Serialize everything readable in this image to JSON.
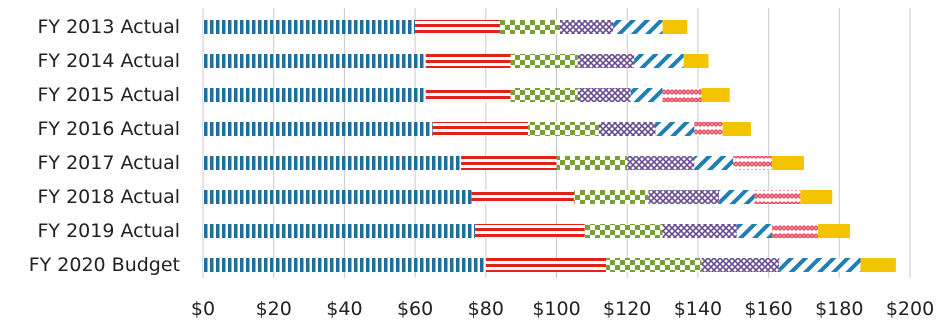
{
  "chart_data": {
    "type": "bar",
    "orientation": "horizontal",
    "stacked": true,
    "categories": [
      "FY 2013 Actual",
      "FY 2014 Actual",
      "FY 2015 Actual",
      "FY 2016 Actual",
      "FY 2017 Actual",
      "FY 2018 Actual",
      "FY 2019 Actual",
      "FY 2020 Budget"
    ],
    "series": [
      {
        "values": [
          60,
          63,
          63,
          65,
          73,
          76,
          77,
          80
        ],
        "color": "#1f6e9c",
        "pattern": "vertical-dash"
      },
      {
        "values": [
          24,
          24,
          24,
          27,
          27,
          29,
          31,
          34
        ],
        "color": "#e2231a",
        "pattern": "horizontal-stripe"
      },
      {
        "values": [
          17,
          19,
          19,
          20,
          20,
          21,
          22,
          27
        ],
        "color": "#77a035",
        "pattern": "checker"
      },
      {
        "values": [
          15,
          16,
          15,
          16,
          19,
          20,
          21,
          22
        ],
        "color": "#6a4c93",
        "pattern": "crosshatch"
      },
      {
        "values": [
          14,
          14,
          9,
          11,
          11,
          10,
          10,
          23
        ],
        "color": "#1f7fb4",
        "pattern": "diagonal"
      },
      {
        "values": [
          0,
          0,
          11,
          8,
          11,
          13,
          13,
          0
        ],
        "color": "#e84a5f",
        "pattern": "zigzag"
      },
      {
        "values": [
          7,
          7,
          8,
          8,
          9,
          9,
          9,
          10
        ],
        "color": "#f5c400",
        "pattern": "solid"
      }
    ],
    "xlim": [
      0,
      200
    ],
    "xticks": [
      "$0",
      "$20",
      "$40",
      "$60",
      "$80",
      "$100",
      "$120",
      "$140",
      "$160",
      "$180",
      "$200"
    ],
    "grid": "vertical",
    "title": "",
    "xlabel": "",
    "ylabel": ""
  }
}
